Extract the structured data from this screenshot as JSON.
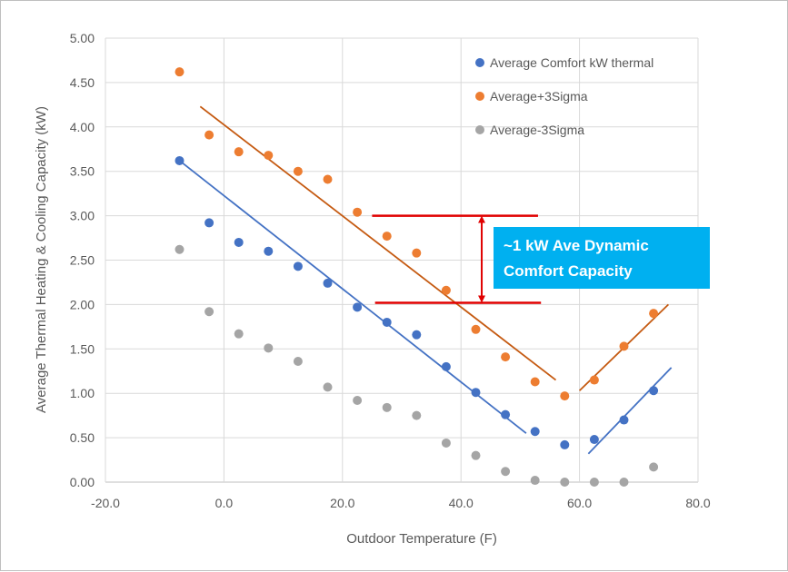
{
  "chart_data": {
    "type": "scatter",
    "title": "",
    "xlabel": "Outdoor Temperature (F)",
    "ylabel": "Average Thermal Heating & Cooling Capacity (kW)",
    "xlim": [
      -20,
      80
    ],
    "ylim": [
      0,
      5
    ],
    "x_ticks": [
      "-20.0",
      "0.0",
      "20.0",
      "40.0",
      "60.0",
      "80.0"
    ],
    "y_ticks": [
      "0.00",
      "0.50",
      "1.00",
      "1.50",
      "2.00",
      "2.50",
      "3.00",
      "3.50",
      "4.00",
      "4.50",
      "5.00"
    ],
    "grid": "vertical and horizontal",
    "legend_position": "top-right",
    "series": [
      {
        "name": "Average Comfort kW thermal",
        "color": "#4472c4",
        "x": [
          -7.5,
          -2.5,
          2.5,
          7.5,
          12.5,
          17.5,
          22.5,
          27.5,
          32.5,
          37.5,
          42.5,
          47.5,
          52.5,
          57.5,
          62.5,
          67.5,
          72.5
        ],
        "y": [
          3.62,
          2.92,
          2.7,
          2.6,
          2.43,
          2.24,
          1.97,
          1.8,
          1.66,
          1.3,
          1.01,
          0.76,
          0.57,
          0.42,
          0.48,
          0.7,
          1.03
        ]
      },
      {
        "name": "Average+3Sigma",
        "color": "#ed7d31",
        "x": [
          -7.5,
          -2.5,
          2.5,
          7.5,
          12.5,
          17.5,
          22.5,
          27.5,
          32.5,
          37.5,
          42.5,
          47.5,
          52.5,
          57.5,
          62.5,
          67.5,
          72.5
        ],
        "y": [
          4.62,
          3.91,
          3.72,
          3.68,
          3.5,
          3.41,
          3.04,
          2.77,
          2.58,
          2.16,
          1.72,
          1.41,
          1.13,
          0.97,
          1.15,
          1.53,
          1.9
        ]
      },
      {
        "name": "Average-3Sigma",
        "color": "#a5a5a5",
        "x": [
          -7.5,
          -2.5,
          2.5,
          7.5,
          12.5,
          17.5,
          22.5,
          27.5,
          32.5,
          37.5,
          42.5,
          47.5,
          52.5,
          57.5,
          62.5,
          67.5,
          72.5
        ],
        "y": [
          2.62,
          1.92,
          1.67,
          1.51,
          1.36,
          1.07,
          0.92,
          0.84,
          0.75,
          0.44,
          0.3,
          0.12,
          0.02,
          0.0,
          0.0,
          0.0,
          0.17
        ]
      }
    ],
    "trendlines": [
      {
        "series": "Average+3Sigma",
        "color": "#c55a11",
        "x": [
          -4,
          56
        ],
        "y": [
          4.23,
          1.15
        ]
      },
      {
        "series": "Average+3Sigma",
        "color": "#c55a11",
        "x": [
          60,
          75
        ],
        "y": [
          1.03,
          2.0
        ]
      },
      {
        "series": "Average Comfort kW thermal",
        "color": "#4472c4",
        "x": [
          -7.5,
          51
        ],
        "y": [
          3.62,
          0.55
        ]
      },
      {
        "series": "Average Comfort kW thermal",
        "color": "#4472c4",
        "x": [
          61.5,
          75.5
        ],
        "y": [
          0.32,
          1.29
        ]
      }
    ],
    "annotation": {
      "text_line1": "~1 kW Ave Dynamic",
      "text_line2": "Comfort Capacity",
      "box_color": "#00b0f0",
      "line_color": "#e00000",
      "upper_y": 3.0,
      "lower_y": 2.02,
      "upper_x": [
        25,
        53
      ],
      "lower_x": [
        25.5,
        53.5
      ],
      "arrow_x": 43.5
    }
  }
}
